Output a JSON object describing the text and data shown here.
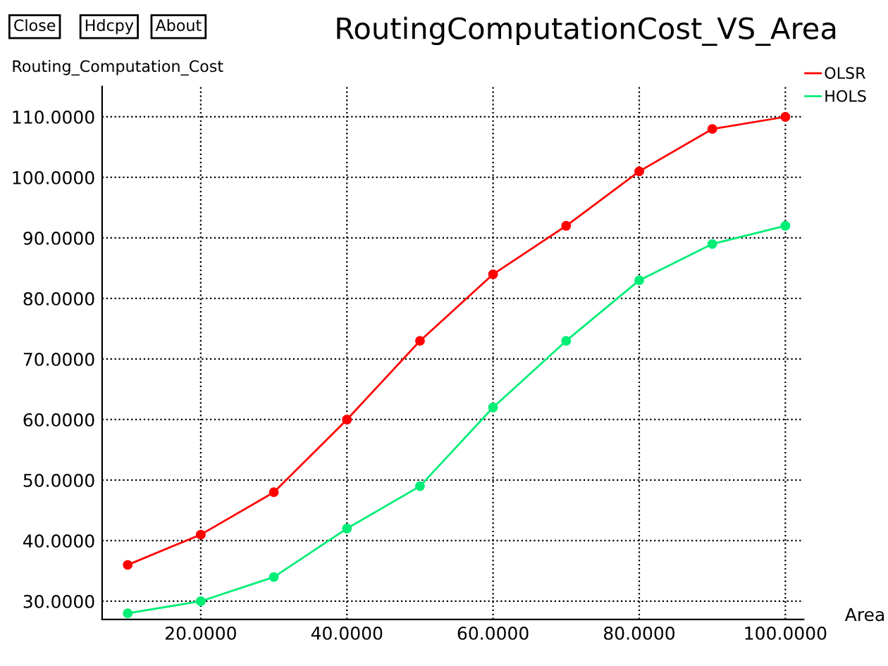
{
  "chart_data": {
    "type": "line",
    "title": "RoutingComputationCost_VS_Area",
    "xlabel": "Area",
    "ylabel": "Routing_Computation_Cost",
    "annotations": [
      "Close",
      "Hdcpy",
      "About"
    ],
    "x": [
      10,
      20,
      30,
      40,
      50,
      60,
      70,
      80,
      90,
      100
    ],
    "series": [
      {
        "name": "OLSR",
        "color": "#ff0000",
        "values": [
          36,
          41,
          48,
          60,
          73,
          84,
          92,
          101,
          108,
          110
        ]
      },
      {
        "name": "HOLS",
        "color": "#00ee76",
        "values": [
          28,
          30,
          34,
          42,
          49,
          62,
          73,
          83,
          89,
          92
        ]
      }
    ],
    "xlim": [
      6.5,
      102.5
    ],
    "ylim": [
      27,
      115
    ],
    "xticks": [
      {
        "value": 20,
        "label": "20.0000"
      },
      {
        "value": 40,
        "label": "40.0000"
      },
      {
        "value": 60,
        "label": "60.0000"
      },
      {
        "value": 80,
        "label": "80.0000"
      },
      {
        "value": 100,
        "label": "100.0000"
      }
    ],
    "yticks": [
      {
        "value": 30,
        "label": "30.0000"
      },
      {
        "value": 40,
        "label": "40.0000"
      },
      {
        "value": 50,
        "label": "50.0000"
      },
      {
        "value": 60,
        "label": "60.0000"
      },
      {
        "value": 70,
        "label": "70.0000"
      },
      {
        "value": 80,
        "label": "80.0000"
      },
      {
        "value": 90,
        "label": "90.0000"
      },
      {
        "value": 100,
        "label": "100.0000"
      },
      {
        "value": 110,
        "label": "110.0000"
      }
    ],
    "grid": true,
    "legend": "top right",
    "marker": "circle",
    "line_style": "solid"
  }
}
